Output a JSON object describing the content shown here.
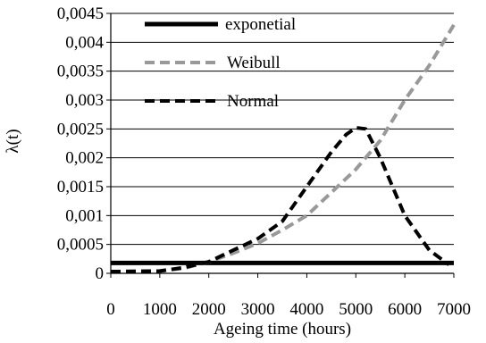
{
  "chart_data": {
    "type": "line",
    "title": "",
    "xlabel": "Ageing time (hours)",
    "ylabel": "λ(t)",
    "xlim": [
      0,
      7000
    ],
    "ylim": [
      0,
      0.0045
    ],
    "x_ticks": [
      "0",
      "1000",
      "2000",
      "3000",
      "4000",
      "5000",
      "6000",
      "7000"
    ],
    "y_ticks": [
      "0",
      "0,0005",
      "0,001",
      "0,0015",
      "0,002",
      "0,0025",
      "0,003",
      "0,0035",
      "0,004",
      "0,0045"
    ],
    "grid": "horizontal",
    "legend_position": "top-left",
    "series": [
      {
        "name": "exponetial",
        "color": "#000000",
        "style": "solid",
        "x": [
          0,
          7000
        ],
        "y": [
          0.00018,
          0.00018
        ]
      },
      {
        "name": "Weibull",
        "color": "#999999",
        "style": "dashed",
        "x": [
          0,
          1000,
          1500,
          2000,
          2500,
          3000,
          3500,
          4000,
          4500,
          5000,
          5500,
          6000,
          6500,
          7000
        ],
        "y": [
          3e-05,
          4e-05,
          9e-05,
          0.0002,
          0.00035,
          0.00052,
          0.00075,
          0.001,
          0.0014,
          0.0018,
          0.0023,
          0.003,
          0.0036,
          0.0043
        ]
      },
      {
        "name": "Normal",
        "color": "#000000",
        "style": "dashed",
        "x": [
          0,
          1000,
          1500,
          2000,
          2500,
          3000,
          3500,
          4000,
          4500,
          4800,
          5000,
          5200,
          5500,
          6000,
          6500,
          6900
        ],
        "y": [
          3e-05,
          4e-05,
          0.0001,
          0.0002,
          0.0004,
          0.0006,
          0.0009,
          0.0015,
          0.0021,
          0.0024,
          0.00252,
          0.0025,
          0.002,
          0.001,
          0.0004,
          0.00015
        ]
      }
    ]
  }
}
